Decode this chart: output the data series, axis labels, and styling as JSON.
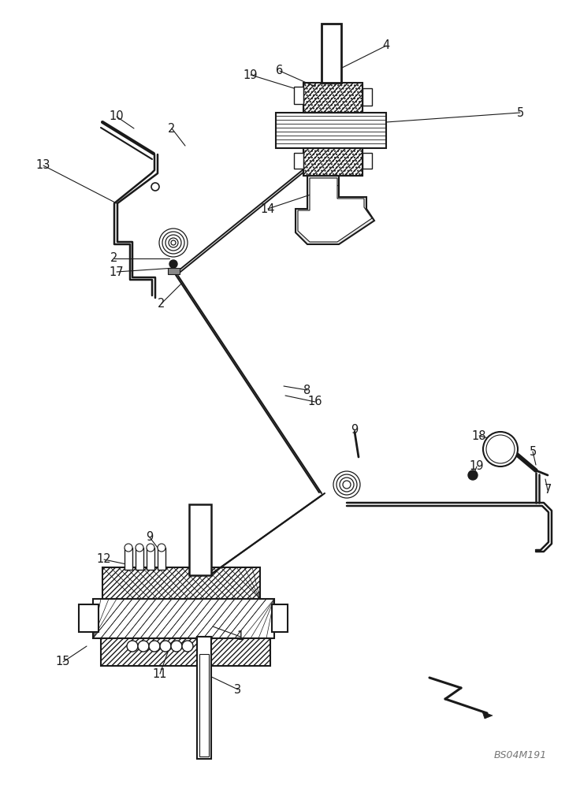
{
  "bg_color": "#ffffff",
  "lc": "#1a1a1a",
  "watermark": "BS04M191",
  "figsize": [
    7.36,
    10.0
  ],
  "dpi": 100
}
